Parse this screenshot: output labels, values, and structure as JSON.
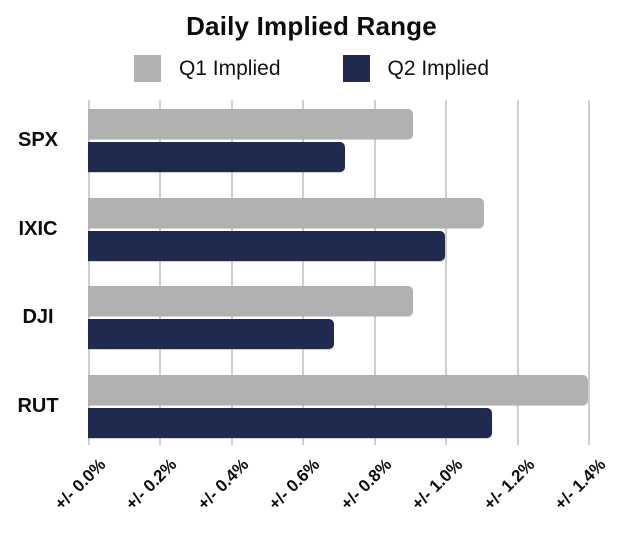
{
  "chart_data": {
    "type": "bar",
    "orientation": "horizontal",
    "title": "Daily Implied Range",
    "categories": [
      "SPX",
      "IXIC",
      "DJI",
      "RUT"
    ],
    "series": [
      {
        "name": "Q1 Implied",
        "color": "#b1b1b1",
        "values": [
          0.91,
          1.11,
          0.91,
          1.4
        ]
      },
      {
        "name": "Q2 Implied",
        "color": "#1f2a4e",
        "values": [
          0.72,
          1.0,
          0.69,
          1.13
        ]
      }
    ],
    "x_ticks": [
      "+/- 0.0%",
      "+/- 0.2%",
      "+/- 0.4%",
      "+/- 0.6%",
      "+/- 0.8%",
      "+/- 1.0%",
      "+/- 1.2%",
      "+/- 1.4%"
    ],
    "xlim": [
      0,
      1.4
    ],
    "legend_position": "top",
    "grid": "vertical",
    "colors": {
      "grid": "#cfcfcf",
      "text": "#0d0d0d",
      "background": "#ffffff"
    }
  }
}
